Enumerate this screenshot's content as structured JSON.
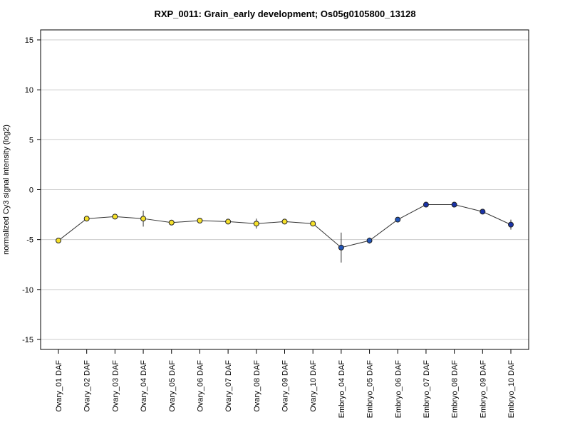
{
  "chart_data": {
    "type": "line",
    "title": "RXP_0011: Grain_early development; Os05g0105800_13128",
    "xlabel": "",
    "ylabel": "normalized Cy3 signal intensity (log2)",
    "ylim": [
      -16,
      16
    ],
    "yticks": [
      15,
      10,
      5,
      0,
      -5,
      -10,
      -15
    ],
    "grid": true,
    "categories": [
      "Ovary_01 DAF",
      "Ovary_02 DAF",
      "Ovary_03 DAF",
      "Ovary_04 DAF",
      "Ovary_05 DAF",
      "Ovary_06 DAF",
      "Ovary_07 DAF",
      "Ovary_08 DAF",
      "Ovary_09 DAF",
      "Ovary_10 DAF",
      "Embryo_04 DAF",
      "Embryo_05 DAF",
      "Embryo_06 DAF",
      "Embryo_07 DAF",
      "Embryo_08 DAF",
      "Embryo_09 DAF",
      "Embryo_10 DAF"
    ],
    "values": [
      -5.1,
      -2.9,
      -2.7,
      -2.9,
      -3.3,
      -3.1,
      -3.2,
      -3.4,
      -3.2,
      -3.4,
      -5.8,
      -5.1,
      -3.0,
      -1.5,
      -1.5,
      -2.2,
      -3.5
    ],
    "errors": [
      0.1,
      0.2,
      0.15,
      0.8,
      0.2,
      0.1,
      0.1,
      0.5,
      0.2,
      0.1,
      1.5,
      0.3,
      0.1,
      0.1,
      0.1,
      0.1,
      0.5
    ],
    "point_colors": [
      "#f5e02a",
      "#f5e02a",
      "#f5e02a",
      "#f5e02a",
      "#f5e02a",
      "#f5e02a",
      "#f5e02a",
      "#f5e02a",
      "#f5e02a",
      "#f5e02a",
      "#2255b8",
      "#2255b8",
      "#2255b8",
      "#1a33a8",
      "#1a33a8",
      "#1a33a8",
      "#1a33a8"
    ],
    "line_color": "#333333",
    "grid_color": "#cccccc"
  }
}
